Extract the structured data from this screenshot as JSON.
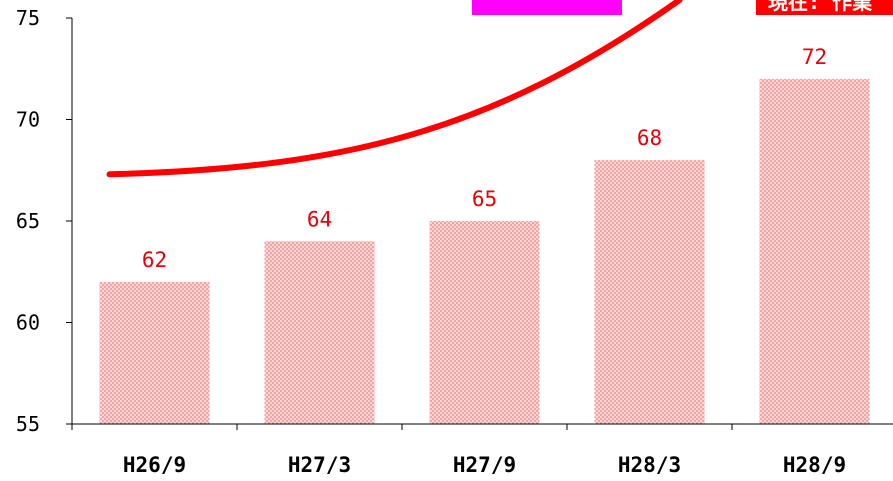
{
  "chart_data": {
    "type": "bar",
    "categories": [
      "H26/9",
      "H27/3",
      "H27/9",
      "H28/3",
      "H28/9"
    ],
    "values": [
      62,
      64,
      65,
      68,
      72
    ],
    "data_labels": [
      "62",
      "64",
      "65",
      "68",
      "72"
    ],
    "ylim": [
      55,
      75
    ],
    "yticks": [
      55,
      60,
      65,
      70,
      75
    ],
    "ytick_labels": [
      "55",
      "60",
      "65",
      "70",
      "75"
    ],
    "grid": false,
    "legend": "none",
    "title": "",
    "xlabel": "",
    "ylabel": "",
    "trend_line": {
      "shape": "upward-curve",
      "color": "#ff0000",
      "y_start": 67.3,
      "y_end_beyond_top": true
    },
    "callouts": [
      {
        "color": "#ff00ff",
        "text": ""
      },
      {
        "color": "#ff0000",
        "text": "現在: 作業"
      }
    ],
    "colors": {
      "bar_fill": "#f7a1a1",
      "bar_dot": "#ffffff",
      "data_label": "#e8000b",
      "axis": "#000000"
    }
  }
}
